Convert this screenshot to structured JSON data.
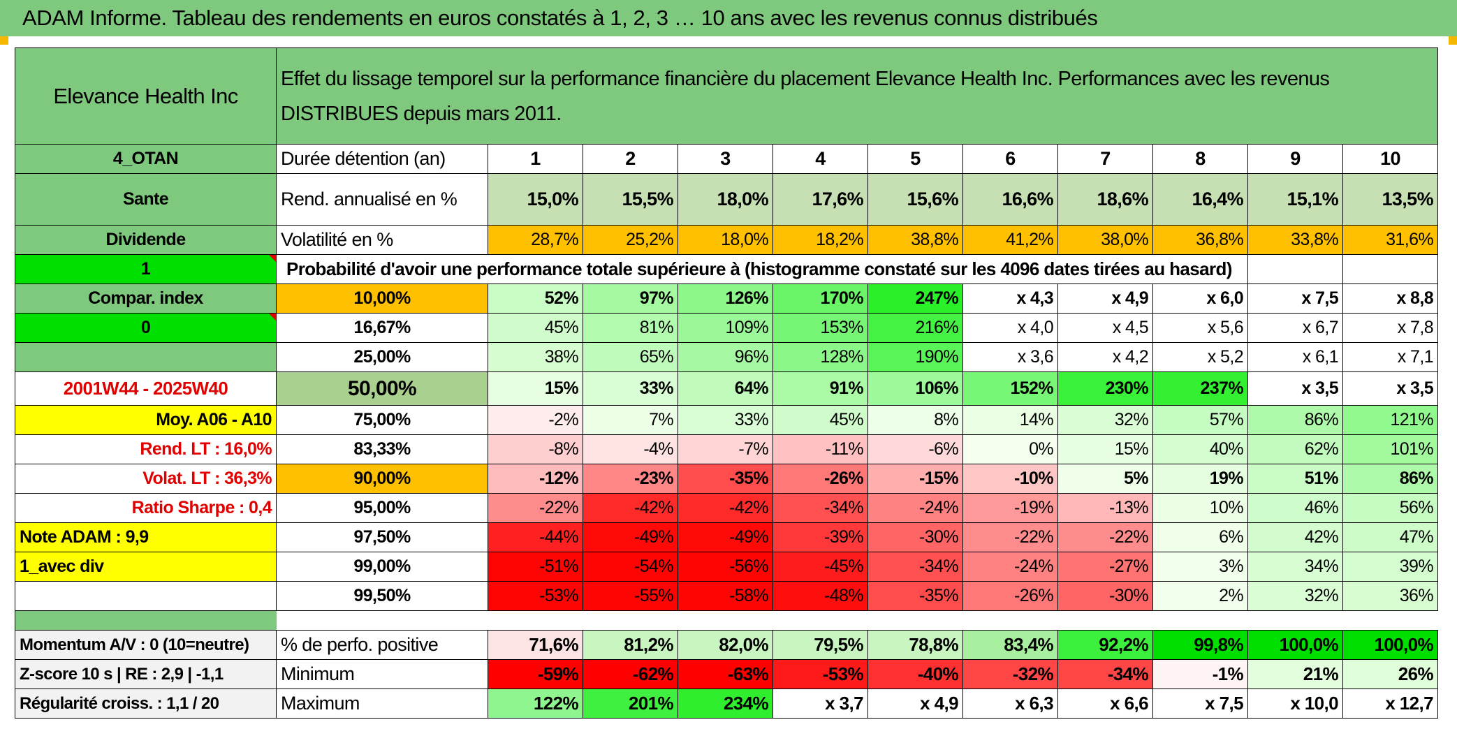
{
  "header": {
    "title": "ADAM Informe. Tableau des rendements en euros constatés à 1, 2, 3 … 10 ans avec les revenus connus distribués"
  },
  "fund": {
    "name": "Elevance Health Inc",
    "desc_line1": "Effet du lissage temporel sur la performance financière du placement Elevance Health Inc. Performances avec les revenus",
    "desc_line2": "DISTRIBUES depuis mars 2011."
  },
  "colors": {
    "header_green": "#7fc97f",
    "vol_orange": "#ffc000",
    "bright_green": "#00e000",
    "yellow": "#ffff00",
    "red_text": "#e00000",
    "light_green": "#c6e0b4"
  },
  "years": [
    "1",
    "2",
    "3",
    "4",
    "5",
    "6",
    "7",
    "8",
    "9",
    "10"
  ],
  "rows": {
    "duree": {
      "left": "4_OTAN",
      "label": "Durée détention (an)"
    },
    "rend": {
      "left": "Sante",
      "label": "Rend. annualisé en %",
      "values": [
        "15,0%",
        "15,5%",
        "18,0%",
        "17,6%",
        "15,6%",
        "16,6%",
        "18,6%",
        "16,4%",
        "15,1%",
        "13,5%"
      ]
    },
    "vol": {
      "left": "Dividende",
      "label": "Volatilité en %",
      "values": [
        "28,7%",
        "25,2%",
        "18,0%",
        "18,2%",
        "38,8%",
        "41,2%",
        "38,0%",
        "36,8%",
        "33,8%",
        "31,6%"
      ]
    },
    "proba_header": {
      "left": "1",
      "label": "Probabilité d'avoir une performance totale supérieure à (histogramme constaté sur les 4096 dates tirées au hasard)"
    }
  },
  "quantiles": [
    {
      "left": "Compar. index",
      "pct": "10,00%",
      "values": [
        "52%",
        "97%",
        "126%",
        "170%",
        "247%",
        "x 4,3",
        "x 4,9",
        "x 6,0",
        "x 7,5",
        "x 8,8"
      ]
    },
    {
      "left": "0",
      "pct": "16,67%",
      "values": [
        "45%",
        "81%",
        "109%",
        "153%",
        "216%",
        "x 4,0",
        "x 4,5",
        "x 5,6",
        "x 6,7",
        "x 7,8"
      ]
    },
    {
      "left": "",
      "pct": "25,00%",
      "values": [
        "38%",
        "65%",
        "96%",
        "128%",
        "190%",
        "x 3,6",
        "x 4,2",
        "x 5,2",
        "x 6,1",
        "x 7,1"
      ]
    },
    {
      "left": "2001W44 - 2025W40",
      "pct": "50,00%",
      "values": [
        "15%",
        "33%",
        "64%",
        "91%",
        "106%",
        "152%",
        "230%",
        "237%",
        "x 3,5",
        "x 3,5"
      ]
    },
    {
      "left": "Moy. A06 - A10",
      "pct": "75,00%",
      "values": [
        "-2%",
        "7%",
        "33%",
        "45%",
        "8%",
        "14%",
        "32%",
        "57%",
        "86%",
        "121%"
      ]
    },
    {
      "left": "Rend. LT :    16,0%",
      "pct": "83,33%",
      "values": [
        "-8%",
        "-4%",
        "-7%",
        "-11%",
        "-6%",
        "0%",
        "15%",
        "40%",
        "62%",
        "101%"
      ]
    },
    {
      "left": "Volat. LT :    36,3%",
      "pct": "90,00%",
      "values": [
        "-12%",
        "-23%",
        "-35%",
        "-26%",
        "-15%",
        "-10%",
        "5%",
        "19%",
        "51%",
        "86%"
      ]
    },
    {
      "left": "Ratio Sharpe :    0,4",
      "pct": "95,00%",
      "values": [
        "-22%",
        "-42%",
        "-42%",
        "-34%",
        "-24%",
        "-19%",
        "-13%",
        "10%",
        "46%",
        "56%"
      ]
    },
    {
      "left": "Note ADAM : 9,9",
      "pct": "97,50%",
      "values": [
        "-44%",
        "-49%",
        "-49%",
        "-39%",
        "-30%",
        "-22%",
        "-22%",
        "6%",
        "42%",
        "47%"
      ]
    },
    {
      "left": "1_avec div",
      "pct": "99,00%",
      "values": [
        "-51%",
        "-54%",
        "-56%",
        "-45%",
        "-34%",
        "-24%",
        "-27%",
        "3%",
        "34%",
        "39%"
      ]
    },
    {
      "left": "",
      "pct": "99,50%",
      "values": [
        "-53%",
        "-55%",
        "-58%",
        "-48%",
        "-35%",
        "-26%",
        "-30%",
        "2%",
        "32%",
        "36%"
      ]
    }
  ],
  "summary": [
    {
      "left": "Momentum A/V : 0 (10=neutre)",
      "label": "% de perfo. positive",
      "values": [
        "71,6%",
        "81,2%",
        "82,0%",
        "79,5%",
        "78,8%",
        "83,4%",
        "92,2%",
        "99,8%",
        "100,0%",
        "100,0%"
      ]
    },
    {
      "left": "Z-score 10 s | RE : 2,9 | -1,1",
      "label": "Minimum",
      "values": [
        "-59%",
        "-62%",
        "-63%",
        "-53%",
        "-40%",
        "-32%",
        "-34%",
        "-1%",
        "21%",
        "26%"
      ]
    },
    {
      "left": "Régularité croiss. : 1,1 / 20",
      "label": "Maximum",
      "values": [
        "122%",
        "201%",
        "234%",
        "x 3,7",
        "x 4,9",
        "x 6,3",
        "x 6,6",
        "x 7,5",
        "x 10,0",
        "x 12,7"
      ]
    }
  ]
}
